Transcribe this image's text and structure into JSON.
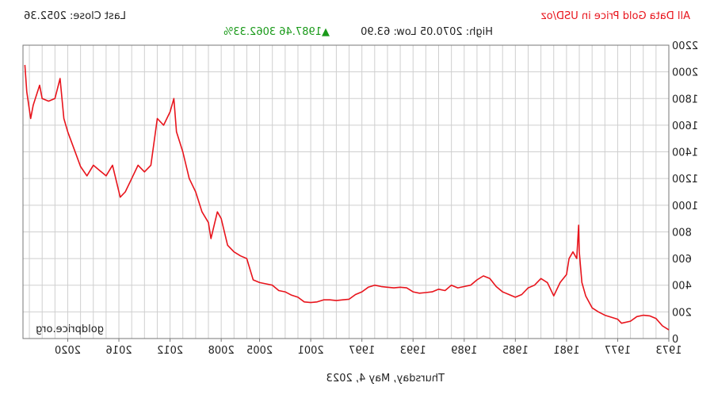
{
  "header": {
    "title": "All Data Gold Price in USD/oz",
    "last_close": "Last Close: 2052.36",
    "high_low": "High: 2070.05 Low: 63.90",
    "change": "▲1987.46 3062.33%"
  },
  "footer": {
    "date": "Thursday, May 4, 2023",
    "watermark": "goldprice.org"
  },
  "colors": {
    "line": "#e8141c",
    "title": "#e8141c",
    "change": "#1a9a1a",
    "grid": "#cfcfcf",
    "text": "#222222"
  },
  "chart_data": {
    "type": "line",
    "title": "All Data Gold Price in USD/oz",
    "xlabel": "",
    "ylabel": "",
    "xlim": [
      1973,
      2023.5
    ],
    "ylim": [
      0,
      2200
    ],
    "yticks": [
      0,
      200,
      400,
      600,
      800,
      1000,
      1200,
      1400,
      1600,
      1800,
      2000,
      2200
    ],
    "xticks": [
      1973,
      1977,
      1981,
      1985,
      1989,
      1993,
      1997,
      2001,
      2005,
      2008,
      2012,
      2016,
      2020
    ],
    "grid": true,
    "series": [
      {
        "x": [
          1973.0,
          1973.5,
          1974.0,
          1974.5,
          1975.0,
          1975.5,
          1976.0,
          1976.7,
          1977.0,
          1977.5,
          1978.0,
          1978.5,
          1979.0,
          1979.5,
          1979.8,
          1980.0,
          1980.05,
          1980.2,
          1980.5,
          1980.8,
          1981.0,
          1981.5,
          1982.0,
          1982.5,
          1983.0,
          1983.5,
          1984.0,
          1984.5,
          1985.0,
          1985.5,
          1986.0,
          1986.5,
          1987.0,
          1987.5,
          1988.0,
          1988.5,
          1989.0,
          1989.5,
          1990.0,
          1990.5,
          1991.0,
          1991.5,
          1992.0,
          1992.5,
          1993.0,
          1993.5,
          1994.0,
          1994.5,
          1995.0,
          1995.5,
          1996.0,
          1996.5,
          1997.0,
          1997.5,
          1998.0,
          1998.5,
          1999.0,
          1999.5,
          2000.0,
          2000.5,
          2001.0,
          2001.5,
          2002.0,
          2002.5,
          2003.0,
          2003.5,
          2004.0,
          2004.5,
          2005.0,
          2005.5,
          2006.0,
          2006.5,
          2007.0,
          2007.5,
          2008.0,
          2008.3,
          2008.8,
          2009.0,
          2009.5,
          2010.0,
          2010.5,
          2011.0,
          2011.5,
          2011.7,
          2012.0,
          2012.5,
          2013.0,
          2013.5,
          2014.0,
          2014.5,
          2015.0,
          2015.5,
          2015.9,
          2016.5,
          2017.0,
          2017.5,
          2018.0,
          2018.5,
          2019.0,
          2019.5,
          2020.0,
          2020.3,
          2020.6,
          2021.0,
          2021.5,
          2022.0,
          2022.2,
          2022.7,
          2022.9,
          2023.2,
          2023.35
        ],
        "y": [
          65,
          95,
          150,
          170,
          175,
          165,
          130,
          115,
          145,
          160,
          175,
          200,
          230,
          320,
          420,
          650,
          850,
          600,
          650,
          600,
          480,
          420,
          320,
          420,
          450,
          400,
          380,
          330,
          310,
          330,
          350,
          390,
          450,
          470,
          440,
          400,
          390,
          380,
          400,
          360,
          370,
          350,
          345,
          340,
          350,
          380,
          385,
          380,
          385,
          390,
          400,
          385,
          350,
          330,
          295,
          290,
          285,
          290,
          290,
          275,
          270,
          275,
          310,
          325,
          350,
          360,
          400,
          410,
          420,
          440,
          600,
          620,
          650,
          700,
          900,
          950,
          750,
          870,
          950,
          1100,
          1200,
          1400,
          1550,
          1800,
          1700,
          1600,
          1650,
          1300,
          1250,
          1300,
          1200,
          1100,
          1060,
          1300,
          1220,
          1260,
          1300,
          1220,
          1290,
          1420,
          1550,
          1650,
          1950,
          1800,
          1780,
          1800,
          1900,
          1750,
          1650,
          1850,
          2052
        ]
      }
    ]
  }
}
